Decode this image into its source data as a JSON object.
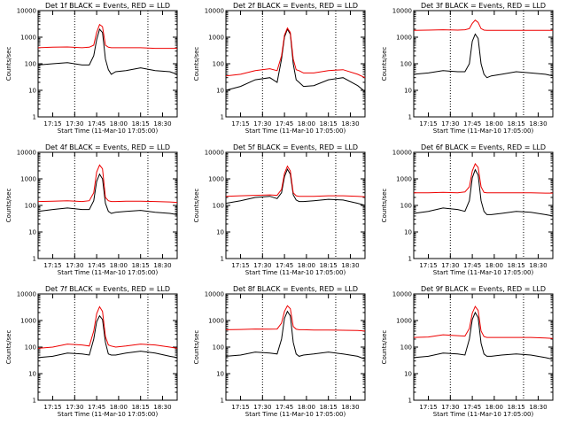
{
  "chart_data": [
    {
      "type": "line",
      "title": "Det 1f BLACK = Events, RED = LLD",
      "xlabel": "Start Time (11-Mar-10 17:05:00)",
      "ylabel": "Counts/sec",
      "x_ticks": [
        "17:15",
        "17:30",
        "17:45",
        "18:00",
        "18:15",
        "18:30"
      ],
      "y_ticks": [
        "1",
        "10",
        "100",
        "1000",
        "10000"
      ],
      "ylim": [
        1,
        10000
      ],
      "y_scale": "log",
      "x": [
        "17:05",
        "17:15",
        "17:25",
        "17:35",
        "17:40",
        "17:43",
        "17:45",
        "17:47",
        "17:49",
        "17:51",
        "17:53",
        "17:55",
        "17:58",
        "18:05",
        "18:15",
        "18:25",
        "18:35",
        "18:40"
      ],
      "dotted_lines_at": [
        "17:30",
        "18:20"
      ],
      "series": [
        {
          "legend": "BLACK = Events",
          "color": "#000000",
          "values": [
            90,
            100,
            110,
            90,
            90,
            200,
            800,
            2000,
            1500,
            150,
            60,
            40,
            50,
            55,
            70,
            55,
            50,
            40
          ]
        },
        {
          "legend": "RED = LLD",
          "color": "#ee0000",
          "values": [
            400,
            420,
            430,
            400,
            420,
            500,
            1500,
            3000,
            2500,
            500,
            420,
            400,
            400,
            400,
            400,
            380,
            380,
            380
          ]
        }
      ]
    },
    {
      "type": "line",
      "title": "Det 2f BLACK = Events, RED = LLD",
      "xlabel": "Start Time (11-Mar-10 17:05:00)",
      "ylabel": "Counts/sec",
      "x_ticks": [
        "17:15",
        "17:30",
        "17:45",
        "18:00",
        "18:15",
        "18:30"
      ],
      "y_ticks": [
        "1",
        "10",
        "100",
        "1000",
        "10000"
      ],
      "ylim": [
        1,
        10000
      ],
      "y_scale": "log",
      "x": [
        "17:05",
        "17:15",
        "17:25",
        "17:35",
        "17:40",
        "17:43",
        "17:45",
        "17:47",
        "17:49",
        "17:51",
        "17:53",
        "17:55",
        "17:58",
        "18:05",
        "18:15",
        "18:25",
        "18:35",
        "18:40"
      ],
      "dotted_lines_at": [
        "17:30",
        "18:20"
      ],
      "series": [
        {
          "legend": "BLACK = Events",
          "color": "#000000",
          "values": [
            10,
            14,
            25,
            30,
            20,
            150,
            1000,
            2000,
            1300,
            100,
            25,
            20,
            14,
            15,
            25,
            30,
            15,
            9
          ]
        },
        {
          "legend": "RED = LLD",
          "color": "#ee0000",
          "values": [
            35,
            40,
            55,
            65,
            55,
            200,
            1200,
            2200,
            1500,
            150,
            60,
            55,
            45,
            45,
            55,
            60,
            40,
            30
          ]
        }
      ]
    },
    {
      "type": "line",
      "title": "Det 3f BLACK = Events, RED = LLD",
      "xlabel": "Start Time (11-Mar-10 17:05:00)",
      "ylabel": "Counts/sec",
      "x_ticks": [
        "17:15",
        "17:30",
        "17:45",
        "18:00",
        "18:15",
        "18:30"
      ],
      "y_ticks": [
        "1",
        "10",
        "100",
        "1000",
        "10000"
      ],
      "ylim": [
        1,
        10000
      ],
      "y_scale": "log",
      "x": [
        "17:05",
        "17:15",
        "17:25",
        "17:35",
        "17:40",
        "17:43",
        "17:45",
        "17:47",
        "17:49",
        "17:51",
        "17:53",
        "17:55",
        "17:58",
        "18:05",
        "18:15",
        "18:25",
        "18:35",
        "18:40"
      ],
      "dotted_lines_at": [
        "17:30",
        "18:20"
      ],
      "series": [
        {
          "legend": "BLACK = Events",
          "color": "#000000",
          "values": [
            40,
            45,
            55,
            50,
            50,
            100,
            700,
            1300,
            900,
            100,
            40,
            30,
            35,
            40,
            50,
            45,
            40,
            35
          ]
        },
        {
          "legend": "RED = LLD",
          "color": "#ee0000",
          "values": [
            1800,
            1850,
            1900,
            1850,
            1900,
            2100,
            3300,
            4400,
            3600,
            2100,
            1850,
            1800,
            1800,
            1800,
            1800,
            1800,
            1800,
            1800
          ]
        }
      ]
    },
    {
      "type": "line",
      "title": "Det 4f BLACK = Events, RED = LLD",
      "xlabel": "Start Time (11-Mar-10 17:05:00)",
      "ylabel": "Counts/sec",
      "x_ticks": [
        "17:15",
        "17:30",
        "17:45",
        "18:00",
        "18:15",
        "18:30"
      ],
      "y_ticks": [
        "1",
        "10",
        "100",
        "1000",
        "10000"
      ],
      "ylim": [
        1,
        10000
      ],
      "y_scale": "log",
      "x": [
        "17:05",
        "17:15",
        "17:25",
        "17:35",
        "17:40",
        "17:43",
        "17:45",
        "17:47",
        "17:49",
        "17:51",
        "17:53",
        "17:55",
        "17:58",
        "18:05",
        "18:15",
        "18:25",
        "18:35",
        "18:40"
      ],
      "dotted_lines_at": [
        "17:30",
        "18:20"
      ],
      "series": [
        {
          "legend": "BLACK = Events",
          "color": "#000000",
          "values": [
            60,
            70,
            80,
            70,
            70,
            150,
            800,
            1500,
            1000,
            120,
            60,
            50,
            55,
            60,
            65,
            55,
            50,
            45
          ]
        },
        {
          "legend": "RED = LLD",
          "color": "#ee0000",
          "values": [
            140,
            145,
            150,
            140,
            150,
            300,
            1800,
            3300,
            2400,
            200,
            150,
            140,
            140,
            145,
            145,
            140,
            135,
            130
          ]
        }
      ]
    },
    {
      "type": "line",
      "title": "Det 5f BLACK = Events, RED = LLD",
      "xlabel": "Start Time (11-Mar-10 17:05:00)",
      "ylabel": "Counts/sec",
      "x_ticks": [
        "17:15",
        "17:30",
        "17:45",
        "18:00",
        "18:15",
        "18:30"
      ],
      "y_ticks": [
        "1",
        "10",
        "100",
        "1000",
        "10000"
      ],
      "ylim": [
        1,
        10000
      ],
      "y_scale": "log",
      "x": [
        "17:05",
        "17:15",
        "17:25",
        "17:35",
        "17:40",
        "17:43",
        "17:45",
        "17:47",
        "17:49",
        "17:51",
        "17:53",
        "17:55",
        "17:58",
        "18:05",
        "18:15",
        "18:25",
        "18:35",
        "18:40"
      ],
      "dotted_lines_at": [
        "17:30",
        "18:20"
      ],
      "series": [
        {
          "legend": "BLACK = Events",
          "color": "#000000",
          "values": [
            120,
            150,
            200,
            220,
            180,
            300,
            1200,
            2300,
            1500,
            250,
            160,
            140,
            140,
            150,
            170,
            160,
            120,
            100
          ]
        },
        {
          "legend": "RED = LLD",
          "color": "#ee0000",
          "values": [
            220,
            230,
            240,
            250,
            240,
            400,
            1600,
            3000,
            2000,
            300,
            230,
            220,
            220,
            220,
            230,
            230,
            220,
            210
          ]
        }
      ]
    },
    {
      "type": "line",
      "title": "Det 6f BLACK = Events, RED = LLD",
      "xlabel": "Start Time (11-Mar-10 17:05:00)",
      "ylabel": "Counts/sec",
      "x_ticks": [
        "17:15",
        "17:30",
        "17:45",
        "18:00",
        "18:15",
        "18:30"
      ],
      "y_ticks": [
        "1",
        "10",
        "100",
        "1000",
        "10000"
      ],
      "ylim": [
        1,
        10000
      ],
      "y_scale": "log",
      "x": [
        "17:05",
        "17:15",
        "17:25",
        "17:35",
        "17:40",
        "17:43",
        "17:45",
        "17:47",
        "17:49",
        "17:51",
        "17:53",
        "17:55",
        "17:58",
        "18:05",
        "18:15",
        "18:25",
        "18:35",
        "18:40"
      ],
      "dotted_lines_at": [
        "17:30",
        "18:20"
      ],
      "series": [
        {
          "legend": "BLACK = Events",
          "color": "#000000",
          "values": [
            50,
            60,
            80,
            70,
            60,
            150,
            1100,
            2200,
            1400,
            150,
            60,
            45,
            45,
            50,
            60,
            55,
            45,
            40
          ]
        },
        {
          "legend": "RED = LLD",
          "color": "#ee0000",
          "values": [
            300,
            300,
            310,
            300,
            320,
            500,
            2000,
            3700,
            2700,
            500,
            310,
            300,
            300,
            300,
            300,
            300,
            290,
            290
          ]
        }
      ]
    },
    {
      "type": "line",
      "title": "Det 7f BLACK = Events, RED = LLD",
      "xlabel": "Start Time (11-Mar-10 17:05:00)",
      "ylabel": "Counts/sec",
      "x_ticks": [
        "17:15",
        "17:30",
        "17:45",
        "18:00",
        "18:15",
        "18:30"
      ],
      "y_ticks": [
        "1",
        "10",
        "100",
        "1000",
        "10000"
      ],
      "ylim": [
        1,
        10000
      ],
      "y_scale": "log",
      "x": [
        "17:05",
        "17:15",
        "17:25",
        "17:35",
        "17:40",
        "17:43",
        "17:45",
        "17:47",
        "17:49",
        "17:51",
        "17:53",
        "17:55",
        "17:58",
        "18:05",
        "18:15",
        "18:25",
        "18:35",
        "18:40"
      ],
      "dotted_lines_at": [
        "17:30",
        "18:20"
      ],
      "series": [
        {
          "legend": "BLACK = Events",
          "color": "#000000",
          "values": [
            40,
            45,
            60,
            55,
            50,
            200,
            900,
            1500,
            1100,
            150,
            55,
            50,
            50,
            60,
            70,
            60,
            45,
            40
          ]
        },
        {
          "legend": "RED = LLD",
          "color": "#ee0000",
          "values": [
            90,
            100,
            130,
            120,
            110,
            400,
            1800,
            3300,
            2200,
            250,
            120,
            110,
            100,
            110,
            130,
            120,
            100,
            90
          ]
        }
      ]
    },
    {
      "type": "line",
      "title": "Det 8f BLACK = Events, RED = LLD",
      "xlabel": "Start Time (11-Mar-10 17:05:00)",
      "ylabel": "Counts/sec",
      "x_ticks": [
        "17:15",
        "17:30",
        "17:45",
        "18:00",
        "18:15",
        "18:30"
      ],
      "y_ticks": [
        "1",
        "10",
        "100",
        "1000",
        "10000"
      ],
      "ylim": [
        1,
        10000
      ],
      "y_scale": "log",
      "x": [
        "17:05",
        "17:15",
        "17:25",
        "17:35",
        "17:40",
        "17:43",
        "17:45",
        "17:47",
        "17:49",
        "17:51",
        "17:53",
        "17:55",
        "17:58",
        "18:05",
        "18:15",
        "18:25",
        "18:35",
        "18:40"
      ],
      "dotted_lines_at": [
        "17:30",
        "18:20"
      ],
      "series": [
        {
          "legend": "BLACK = Events",
          "color": "#000000",
          "values": [
            45,
            50,
            65,
            60,
            55,
            200,
            1200,
            2200,
            1500,
            150,
            55,
            45,
            50,
            55,
            65,
            55,
            45,
            35
          ]
        },
        {
          "legend": "RED = LLD",
          "color": "#ee0000",
          "values": [
            450,
            460,
            480,
            470,
            480,
            800,
            2200,
            3600,
            2800,
            600,
            470,
            450,
            450,
            440,
            440,
            430,
            420,
            400
          ]
        }
      ]
    },
    {
      "type": "line",
      "title": "Det 9f BLACK = Events, RED = LLD",
      "xlabel": "Start Time (11-Mar-10 17:05:00)",
      "ylabel": "Counts/sec",
      "x_ticks": [
        "17:15",
        "17:30",
        "17:45",
        "18:00",
        "18:15",
        "18:30"
      ],
      "y_ticks": [
        "1",
        "10",
        "100",
        "1000",
        "10000"
      ],
      "ylim": [
        1,
        10000
      ],
      "y_scale": "log",
      "x": [
        "17:05",
        "17:15",
        "17:25",
        "17:35",
        "17:40",
        "17:43",
        "17:45",
        "17:47",
        "17:49",
        "17:51",
        "17:53",
        "17:55",
        "17:58",
        "18:05",
        "18:15",
        "18:25",
        "18:35",
        "18:40"
      ],
      "dotted_lines_at": [
        "17:30",
        "18:20"
      ],
      "series": [
        {
          "legend": "BLACK = Events",
          "color": "#000000",
          "values": [
            40,
            45,
            60,
            55,
            50,
            200,
            1100,
            2000,
            1300,
            140,
            55,
            45,
            45,
            50,
            55,
            50,
            40,
            35
          ]
        },
        {
          "legend": "RED = LLD",
          "color": "#ee0000",
          "values": [
            230,
            240,
            290,
            270,
            260,
            500,
            1900,
            3400,
            2400,
            400,
            250,
            230,
            230,
            230,
            230,
            230,
            220,
            210
          ]
        }
      ]
    }
  ]
}
